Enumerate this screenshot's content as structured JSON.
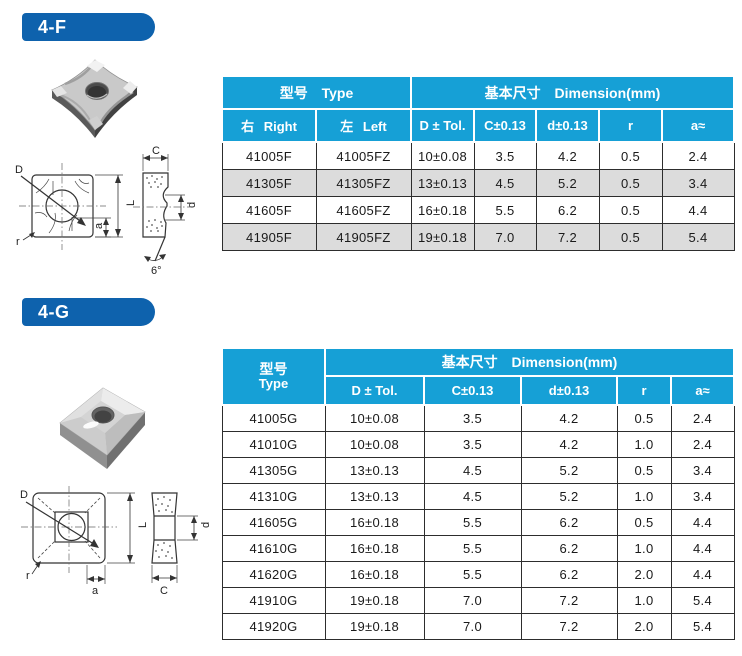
{
  "colors": {
    "banner_blue": "#0e62ad",
    "table_header_cyan": "#16a0d6",
    "alt_row_gray": "#dcdcdc",
    "border_dark": "#2d2d2d",
    "header_text": "#ffffff",
    "body_text": "#1a1a1a"
  },
  "sections": [
    {
      "banner": "4-F",
      "images": {
        "photo_icon": "square-carbide-insert-3d-photo",
        "drawing_icon": "insert-dimension-line-drawing"
      },
      "drawing": {
        "d_big": "D",
        "l": "L",
        "a": "a",
        "r": "r",
        "c": "C",
        "d_small": "d",
        "angle": "6°"
      },
      "table": {
        "group_type": "型号 Type",
        "group_dim": "基本尺寸 Dimension(mm)",
        "columns": [
          "右 Right",
          "左 Left",
          "D ± Tol.",
          "C±0.13",
          "d±0.13",
          "r",
          "a≈"
        ],
        "rows": [
          [
            "41005F",
            "41005FZ",
            "10±0.08",
            "3.5",
            "4.2",
            "0.5",
            "2.4"
          ],
          [
            "41305F",
            "41305FZ",
            "13±0.13",
            "4.5",
            "5.2",
            "0.5",
            "3.4"
          ],
          [
            "41605F",
            "41605FZ",
            "16±0.18",
            "5.5",
            "6.2",
            "0.5",
            "4.4"
          ],
          [
            "41905F",
            "41905FZ",
            "19±0.18",
            "7.0",
            "7.2",
            "0.5",
            "5.4"
          ]
        ]
      }
    },
    {
      "banner": "4-G",
      "images": {
        "photo_icon": "square-carbide-insert-3d-photo",
        "drawing_icon": "insert-dimension-line-drawing"
      },
      "drawing": {
        "d_big": "D",
        "l": "L",
        "a": "a",
        "r": "r",
        "c": "C",
        "d_small": "d"
      },
      "table": {
        "type_zh": "型号",
        "type_en": "Type",
        "group_dim": "基本尺寸 Dimension(mm)",
        "columns": [
          "D ± Tol.",
          "C±0.13",
          "d±0.13",
          "r",
          "a≈"
        ],
        "rows": [
          [
            "41005G",
            "10±0.08",
            "3.5",
            "4.2",
            "0.5",
            "2.4"
          ],
          [
            "41010G",
            "10±0.08",
            "3.5",
            "4.2",
            "1.0",
            "2.4"
          ],
          [
            "41305G",
            "13±0.13",
            "4.5",
            "5.2",
            "0.5",
            "3.4"
          ],
          [
            "41310G",
            "13±0.13",
            "4.5",
            "5.2",
            "1.0",
            "3.4"
          ],
          [
            "41605G",
            "16±0.18",
            "5.5",
            "6.2",
            "0.5",
            "4.4"
          ],
          [
            "41610G",
            "16±0.18",
            "5.5",
            "6.2",
            "1.0",
            "4.4"
          ],
          [
            "41620G",
            "16±0.18",
            "5.5",
            "6.2",
            "2.0",
            "4.4"
          ],
          [
            "41910G",
            "19±0.18",
            "7.0",
            "7.2",
            "1.0",
            "5.4"
          ],
          [
            "41920G",
            "19±0.18",
            "7.0",
            "7.2",
            "2.0",
            "5.4"
          ]
        ]
      }
    }
  ]
}
